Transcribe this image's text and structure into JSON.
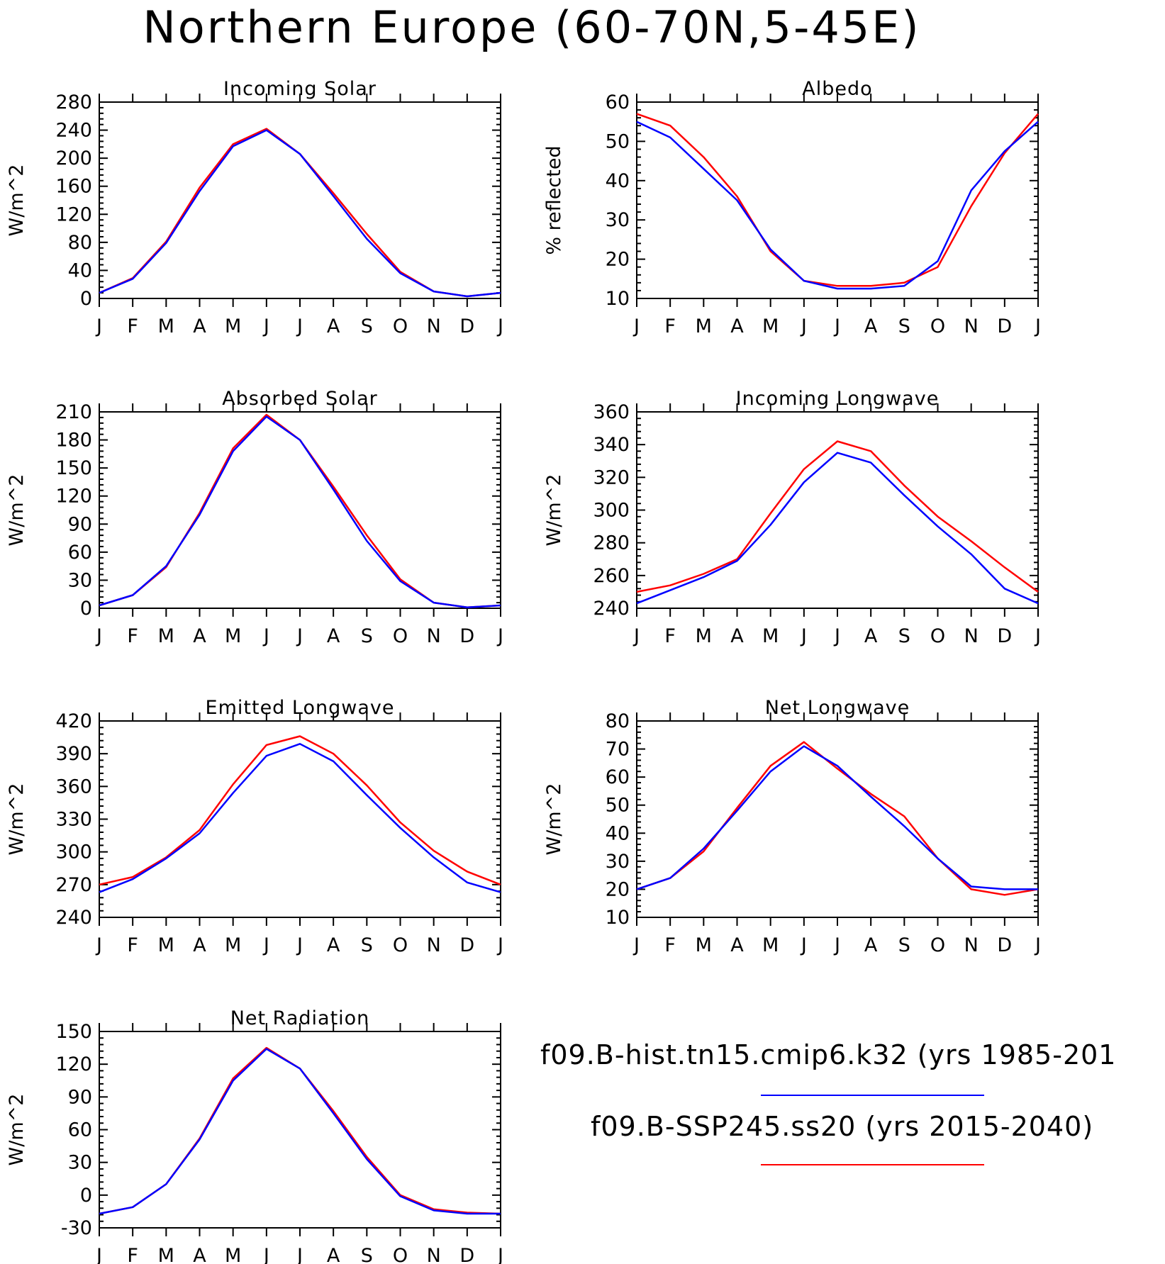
{
  "title": "Northern Europe (60-70N,5-45E)",
  "colors": {
    "hist": "#0000ff",
    "ssp": "#ff0000"
  },
  "legend": {
    "hist_label": "f09.B-hist.tn15.cmip6.k32 (yrs 1985-201",
    "ssp_label": "f09.B-SSP245.ss20 (yrs 2015-2040)"
  },
  "chart_data": [
    {
      "type": "line",
      "title": "Incoming Solar",
      "ylabel": "W/m^2",
      "categories": [
        "J",
        "F",
        "M",
        "A",
        "M",
        "J",
        "J",
        "A",
        "S",
        "O",
        "N",
        "D",
        "J"
      ],
      "ylim": [
        0,
        280
      ],
      "yticks": [
        0,
        40,
        80,
        120,
        160,
        200,
        240,
        280
      ],
      "series": [
        {
          "key": "hist",
          "values": [
            8,
            28,
            79,
            153,
            217,
            240,
            206,
            146,
            85,
            36,
            10,
            3,
            8
          ]
        },
        {
          "key": "ssp",
          "values": [
            8,
            29,
            81,
            158,
            220,
            242,
            206,
            150,
            92,
            38,
            10,
            3,
            8
          ]
        }
      ]
    },
    {
      "type": "line",
      "title": "Albedo",
      "ylabel": "% reflected",
      "categories": [
        "J",
        "F",
        "M",
        "A",
        "M",
        "J",
        "J",
        "A",
        "S",
        "O",
        "N",
        "D",
        "J"
      ],
      "ylim": [
        10,
        60
      ],
      "yticks": [
        10,
        20,
        30,
        40,
        50,
        60
      ],
      "series": [
        {
          "key": "hist",
          "values": [
            55,
            51,
            43,
            35,
            22.5,
            14.5,
            12.5,
            12.5,
            13.2,
            19.5,
            37.5,
            47.5,
            55
          ]
        },
        {
          "key": "ssp",
          "values": [
            57,
            54,
            46,
            36,
            22,
            14.5,
            13.2,
            13.2,
            14,
            18,
            33.5,
            47,
            57
          ]
        }
      ]
    },
    {
      "type": "line",
      "title": "Absorbed Solar",
      "ylabel": "W/m^2",
      "categories": [
        "J",
        "F",
        "M",
        "A",
        "M",
        "J",
        "J",
        "A",
        "S",
        "O",
        "N",
        "D",
        "J"
      ],
      "ylim": [
        0,
        210
      ],
      "yticks": [
        0,
        30,
        60,
        90,
        120,
        150,
        180,
        210
      ],
      "series": [
        {
          "key": "hist",
          "values": [
            3,
            14,
            45,
            100,
            168,
            205,
            180,
            127,
            72,
            29,
            6,
            1,
            3
          ]
        },
        {
          "key": "ssp",
          "values": [
            3,
            14,
            44,
            102,
            171,
            207,
            180,
            130,
            78,
            31,
            6,
            1,
            3
          ]
        }
      ]
    },
    {
      "type": "line",
      "title": "Incoming Longwave",
      "ylabel": "W/m^2",
      "categories": [
        "J",
        "F",
        "M",
        "A",
        "M",
        "J",
        "J",
        "A",
        "S",
        "O",
        "N",
        "D",
        "J"
      ],
      "ylim": [
        240,
        360
      ],
      "yticks": [
        240,
        260,
        280,
        300,
        320,
        340,
        360
      ],
      "series": [
        {
          "key": "hist",
          "values": [
            243,
            251,
            259,
            269,
            291,
            317,
            335,
            329,
            309,
            290,
            273,
            252,
            243
          ]
        },
        {
          "key": "ssp",
          "values": [
            250,
            254,
            261,
            270,
            298,
            325,
            342,
            336,
            315,
            296,
            281,
            265,
            250
          ]
        }
      ]
    },
    {
      "type": "line",
      "title": "Emitted Longwave",
      "ylabel": "W/m^2",
      "categories": [
        "J",
        "F",
        "M",
        "A",
        "M",
        "J",
        "J",
        "A",
        "S",
        "O",
        "N",
        "D",
        "J"
      ],
      "ylim": [
        240,
        420
      ],
      "yticks": [
        240,
        270,
        300,
        330,
        360,
        390,
        420
      ],
      "series": [
        {
          "key": "hist",
          "values": [
            263,
            275,
            294,
            317,
            354,
            388,
            399,
            383,
            352,
            322,
            295,
            272,
            263
          ]
        },
        {
          "key": "ssp",
          "values": [
            270,
            277,
            295,
            320,
            362,
            398,
            406,
            390,
            361,
            327,
            301,
            282,
            270
          ]
        }
      ]
    },
    {
      "type": "line",
      "title": "Net Longwave",
      "ylabel": "W/m^2",
      "categories": [
        "J",
        "F",
        "M",
        "A",
        "M",
        "J",
        "J",
        "A",
        "S",
        "O",
        "N",
        "D",
        "J"
      ],
      "ylim": [
        10,
        80
      ],
      "yticks": [
        10,
        20,
        30,
        40,
        50,
        60,
        70,
        80
      ],
      "series": [
        {
          "key": "hist",
          "values": [
            20,
            24,
            34.5,
            48,
            62,
            71,
            64,
            53,
            42.5,
            31,
            21,
            20,
            20
          ]
        },
        {
          "key": "ssp",
          "values": [
            20,
            24,
            33.5,
            49,
            64,
            72.5,
            63,
            54,
            46,
            31,
            20,
            18,
            20
          ]
        }
      ]
    },
    {
      "type": "line",
      "title": "Net Radiation",
      "ylabel": "W/m^2",
      "categories": [
        "J",
        "F",
        "M",
        "A",
        "M",
        "J",
        "J",
        "A",
        "S",
        "O",
        "N",
        "D",
        "J"
      ],
      "ylim": [
        -30,
        150
      ],
      "yticks": [
        -30,
        0,
        30,
        60,
        90,
        120,
        150
      ],
      "series": [
        {
          "key": "hist",
          "values": [
            -17,
            -11,
            10,
            51,
            105,
            134,
            116,
            75,
            33,
            -1,
            -14,
            -17,
            -17
          ]
        },
        {
          "key": "ssp",
          "values": [
            -17,
            -11,
            10,
            52,
            107,
            135,
            116,
            77,
            35,
            0,
            -13,
            -16,
            -17
          ]
        }
      ]
    }
  ]
}
